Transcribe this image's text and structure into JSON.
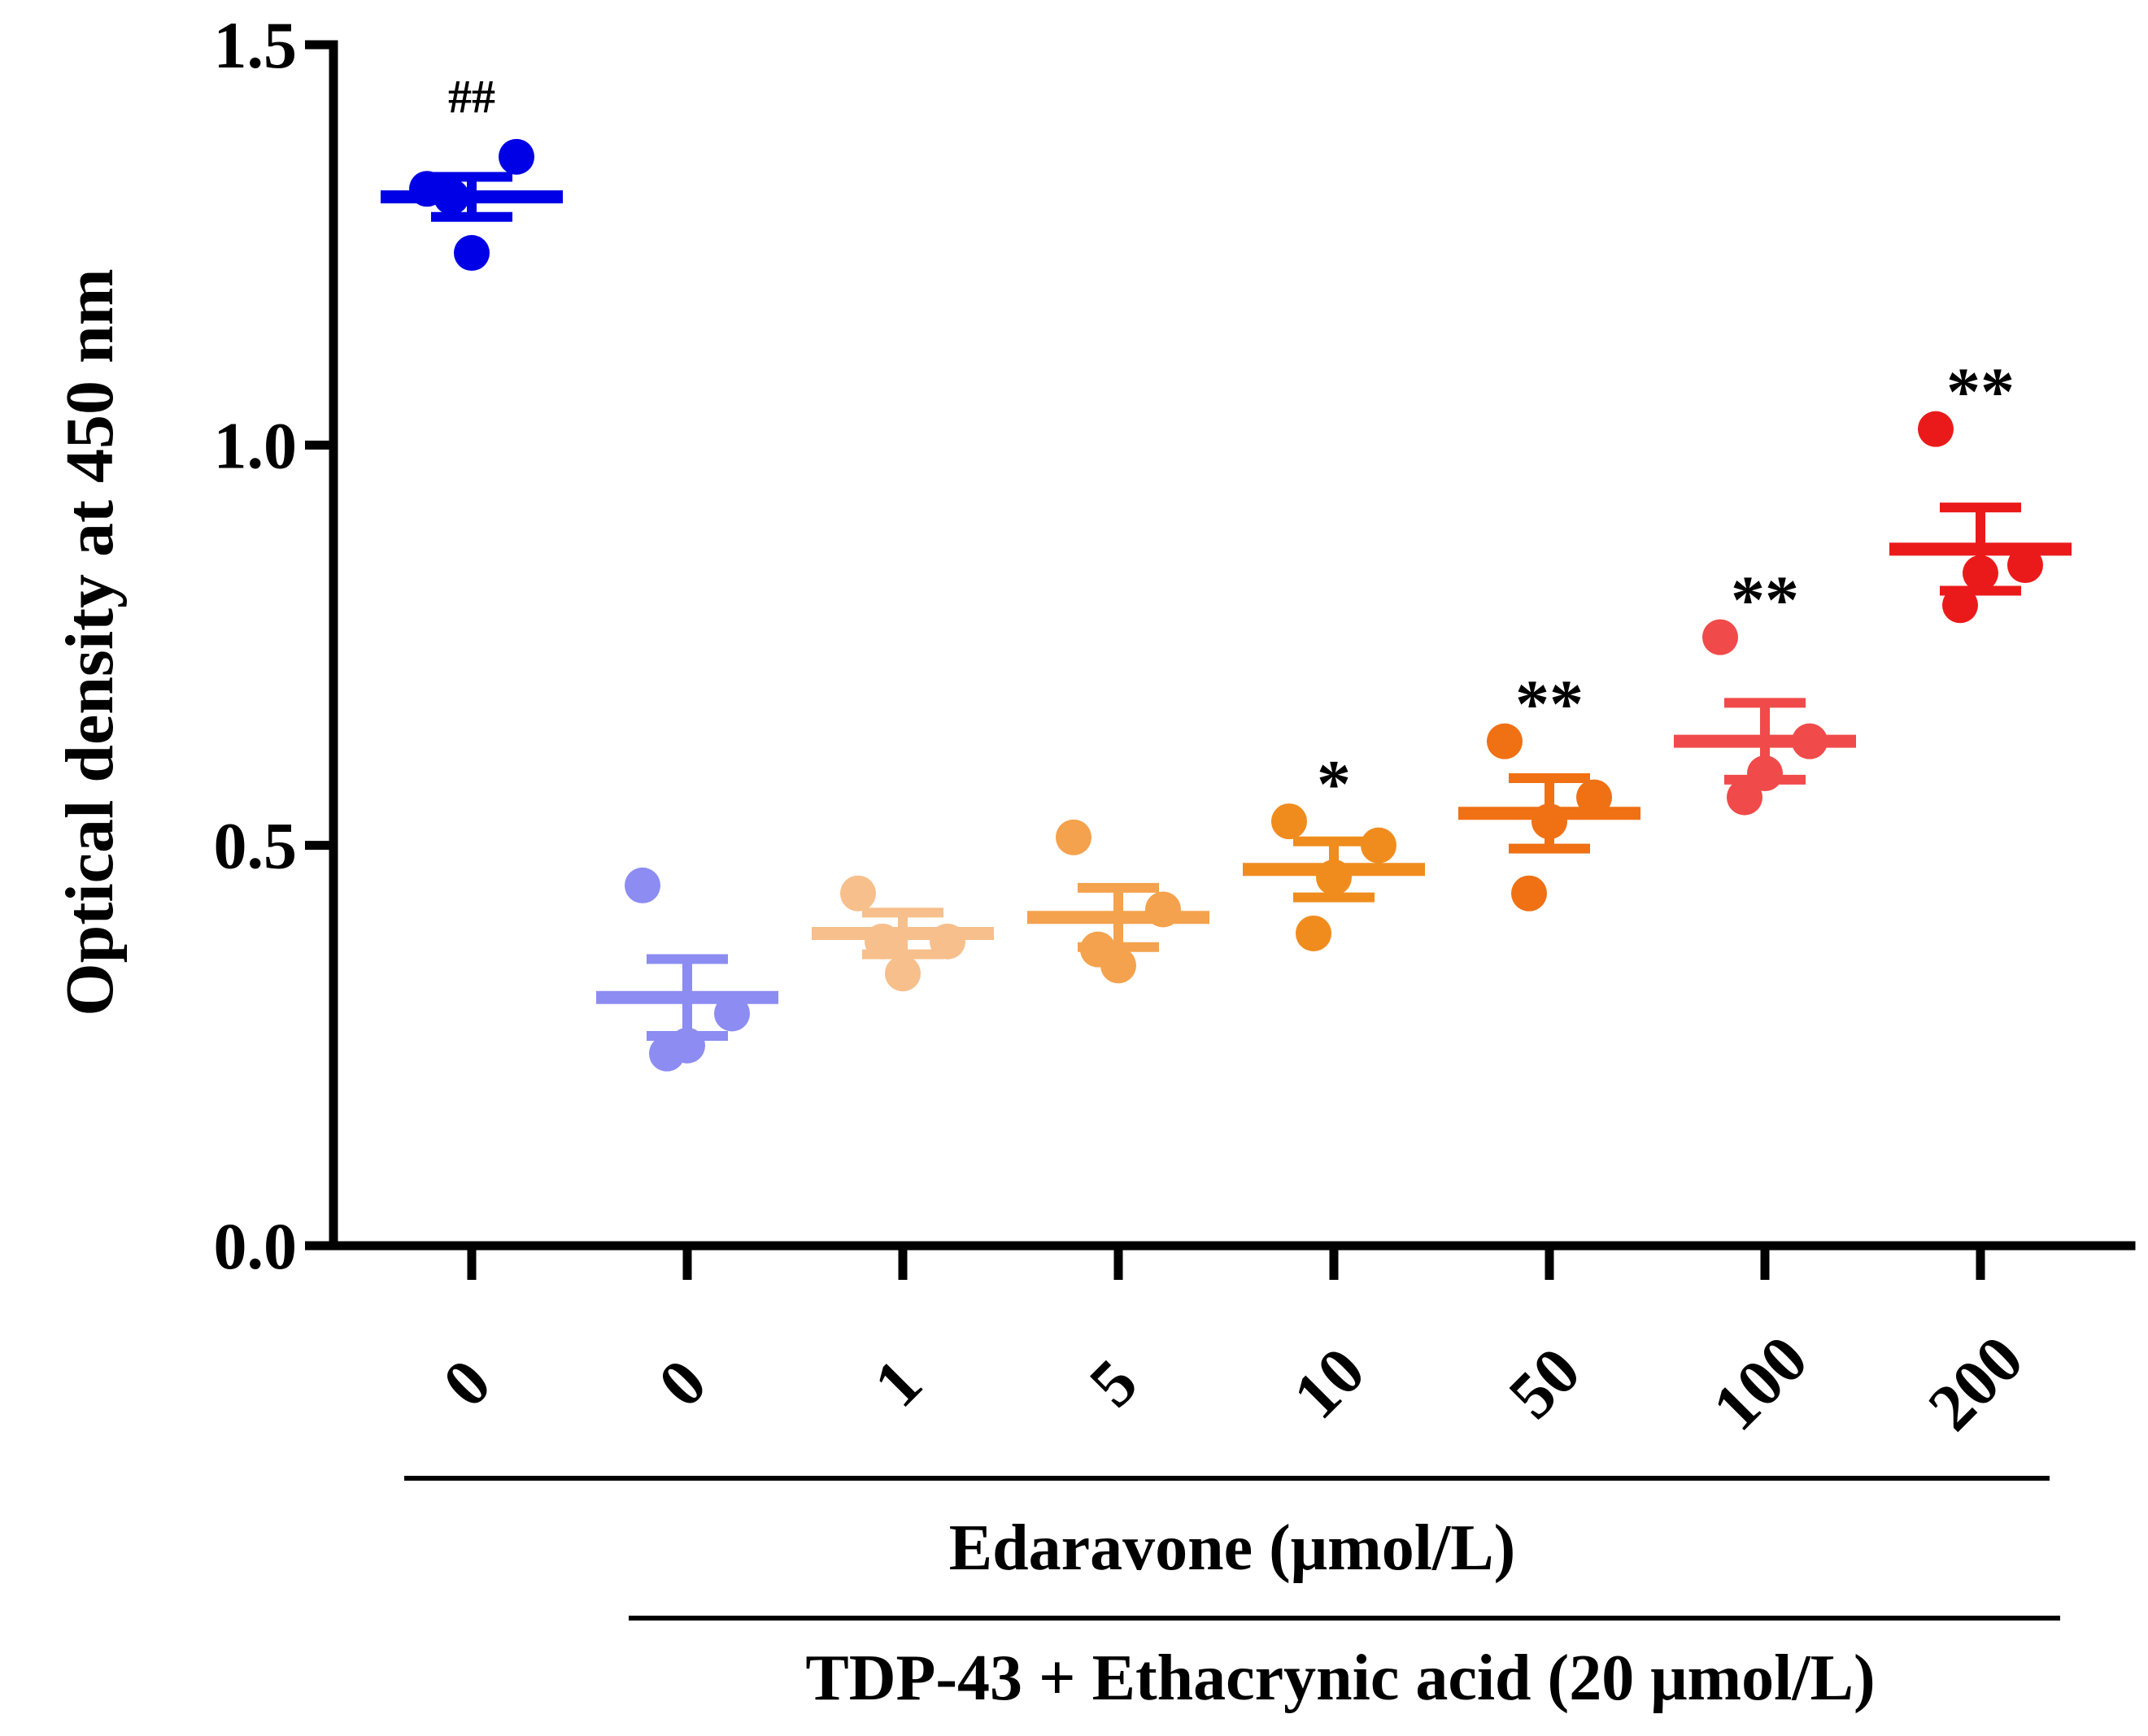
{
  "chart_data": {
    "type": "scatter",
    "title": "",
    "ylabel": "Optical density at 450 nm",
    "ylim": [
      0,
      1.5
    ],
    "yticks": [
      "0.0",
      "0.5",
      "1.0",
      "1.5"
    ],
    "categories": [
      "0",
      "0",
      "1",
      "5",
      "10",
      "50",
      "100",
      "200"
    ],
    "xlabel": "Edaravone (μmol/L)",
    "group_label": "TDP-43 + Ethacrynic acid (20 μmol/L)",
    "groups": [
      {
        "category": "0",
        "color": "#0000e6",
        "mean": 1.31,
        "sem": 0.025,
        "points": [
          1.32,
          1.36,
          1.24,
          1.31
        ],
        "annotation": "##"
      },
      {
        "category": "0",
        "color": "#8c8cf2",
        "mean": 0.31,
        "sem": 0.048,
        "points": [
          0.45,
          0.29,
          0.25,
          0.24
        ],
        "annotation": ""
      },
      {
        "category": "1",
        "color": "#f7bf8c",
        "mean": 0.39,
        "sem": 0.026,
        "points": [
          0.44,
          0.38,
          0.34,
          0.38
        ],
        "annotation": ""
      },
      {
        "category": "5",
        "color": "#f4a24d",
        "mean": 0.41,
        "sem": 0.037,
        "points": [
          0.51,
          0.42,
          0.35,
          0.37
        ],
        "annotation": ""
      },
      {
        "category": "10",
        "color": "#f08c1e",
        "mean": 0.47,
        "sem": 0.035,
        "points": [
          0.53,
          0.5,
          0.46,
          0.39
        ],
        "annotation": "*"
      },
      {
        "category": "50",
        "color": "#f07014",
        "mean": 0.54,
        "sem": 0.044,
        "points": [
          0.63,
          0.56,
          0.53,
          0.44
        ],
        "annotation": "**"
      },
      {
        "category": "100",
        "color": "#f04a4a",
        "mean": 0.63,
        "sem": 0.048,
        "points": [
          0.76,
          0.63,
          0.59,
          0.56
        ],
        "annotation": "**"
      },
      {
        "category": "200",
        "color": "#eb1a1a",
        "mean": 0.87,
        "sem": 0.052,
        "points": [
          1.02,
          0.85,
          0.84,
          0.8
        ],
        "annotation": "**"
      }
    ]
  }
}
